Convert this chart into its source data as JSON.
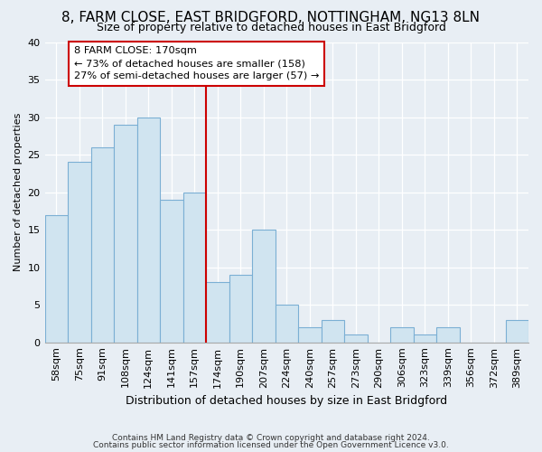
{
  "title": "8, FARM CLOSE, EAST BRIDGFORD, NOTTINGHAM, NG13 8LN",
  "subtitle": "Size of property relative to detached houses in East Bridgford",
  "xlabel": "Distribution of detached houses by size in East Bridgford",
  "ylabel": "Number of detached properties",
  "bar_labels": [
    "58sqm",
    "75sqm",
    "91sqm",
    "108sqm",
    "124sqm",
    "141sqm",
    "157sqm",
    "174sqm",
    "190sqm",
    "207sqm",
    "224sqm",
    "240sqm",
    "257sqm",
    "273sqm",
    "290sqm",
    "306sqm",
    "323sqm",
    "339sqm",
    "356sqm",
    "372sqm",
    "389sqm"
  ],
  "bar_values": [
    17,
    24,
    26,
    29,
    30,
    19,
    20,
    8,
    9,
    15,
    5,
    2,
    3,
    1,
    0,
    2,
    1,
    2,
    0,
    0,
    3
  ],
  "bar_color": "#d0e4f0",
  "bar_edge_color": "#7bafd4",
  "reference_line_color": "#cc0000",
  "box_text_line1": "8 FARM CLOSE: 170sqm",
  "box_text_line2": "← 73% of detached houses are smaller (158)",
  "box_text_line3": "27% of semi-detached houses are larger (57) →",
  "box_edge_color": "#cc0000",
  "box_facecolor": "white",
  "ylim": [
    0,
    40
  ],
  "yticks": [
    0,
    5,
    10,
    15,
    20,
    25,
    30,
    35,
    40
  ],
  "footer1": "Contains HM Land Registry data © Crown copyright and database right 2024.",
  "footer2": "Contains public sector information licensed under the Open Government Licence v3.0.",
  "bg_color": "#e8eef4",
  "plot_bg_color": "#e8eef4",
  "grid_color": "#ffffff",
  "title_fontsize": 11,
  "subtitle_fontsize": 9,
  "xlabel_fontsize": 9,
  "ylabel_fontsize": 8,
  "tick_fontsize": 8
}
